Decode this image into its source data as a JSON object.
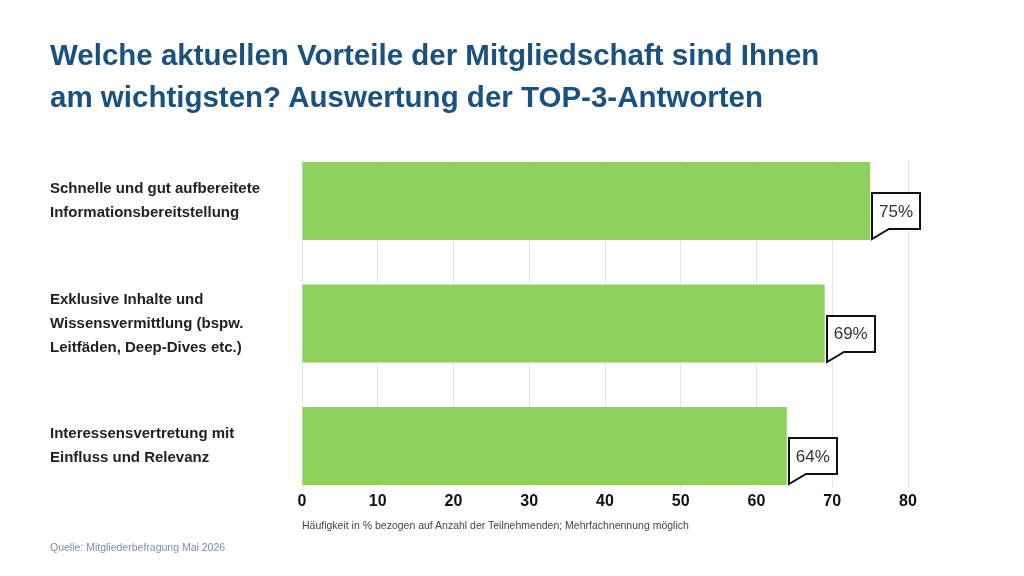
{
  "chart_data": {
    "type": "bar",
    "orientation": "horizontal",
    "title": "Welche aktuellen Vorteile der Mitgliedschaft sind Ihnen am wichtigsten? Auswertung der TOP-3-Antworten",
    "categories": [
      "Schnelle und gut aufbereitete Informationsbereitstellung",
      "Exklusive Inhalte und Wissensvermittlung (bspw. Leitfäden, Deep-Dives etc.)",
      "Interessensvertretung mit Einfluss und Relevanz"
    ],
    "values": [
      75,
      69,
      64
    ],
    "value_labels": [
      "75%",
      "69%",
      "64%"
    ],
    "color": "#8dd05c",
    "xlim": [
      0,
      80
    ],
    "xticks": [
      0,
      10,
      20,
      30,
      40,
      50,
      60,
      70,
      80
    ],
    "xlabel": "Häufigkeit in % bezogen auf Anzahl der Teilnehmenden; Mehrfachnennung möglich",
    "annotations": [
      "Quelle: Mitgliederbefragung Mai 2026"
    ],
    "grid": "x"
  }
}
